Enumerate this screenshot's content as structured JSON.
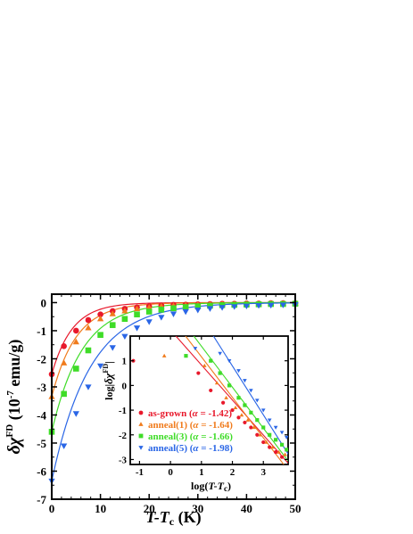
{
  "chart_data": [
    {
      "type": "scatter",
      "xlim": [
        0,
        50
      ],
      "ylim": [
        -7,
        0.3
      ],
      "xticks": [
        0,
        10,
        20,
        30,
        40,
        50
      ],
      "yticks": [
        0,
        -1,
        -2,
        -3,
        -4,
        -5,
        -6,
        -7
      ],
      "xlabel_main": "T-T",
      "xlabel_sub": "c",
      "xlabel_unit": " (K)",
      "ylabel_main": "δχ",
      "ylabel_sup": "FD",
      "ylabel_unit_pre": " (10",
      "ylabel_unit_exp": "-7",
      "ylabel_unit_post": " emu/g)",
      "legend": "inset",
      "series": [
        {
          "name": "as-grown",
          "color": "#e8182b",
          "marker": "circle",
          "x": [
            0,
            2.5,
            5,
            7.5,
            10,
            12.5,
            15,
            17.5,
            20,
            22.5,
            25,
            27.5,
            30,
            32.5,
            35,
            37.5,
            40,
            42.5,
            45,
            47.5,
            50
          ],
          "y": [
            -2.55,
            -1.55,
            -1.0,
            -0.62,
            -0.42,
            -0.3,
            -0.22,
            -0.17,
            -0.13,
            -0.1,
            -0.08,
            -0.07,
            -0.06,
            -0.05,
            -0.04,
            -0.04,
            -0.03,
            -0.03,
            -0.02,
            -0.02,
            -0.02
          ]
        },
        {
          "name": "anneal(1)",
          "color": "#f07b1c",
          "marker": "triangle-up",
          "x": [
            0,
            2.5,
            5,
            7.5,
            10,
            12.5,
            15,
            17.5,
            20,
            22.5,
            25,
            27.5,
            30,
            32.5,
            35,
            37.5,
            40,
            42.5,
            45,
            47.5,
            50
          ],
          "y": [
            -3.35,
            -2.15,
            -1.4,
            -0.9,
            -0.58,
            -0.4,
            -0.3,
            -0.22,
            -0.17,
            -0.13,
            -0.11,
            -0.09,
            -0.07,
            -0.06,
            -0.05,
            -0.05,
            -0.04,
            -0.04,
            -0.03,
            -0.03,
            -0.03
          ]
        },
        {
          "name": "anneal(3)",
          "color": "#3fdc28",
          "marker": "square",
          "x": [
            0,
            2.5,
            5,
            7.5,
            10,
            12.5,
            15,
            17.5,
            20,
            22.5,
            25,
            27.5,
            30,
            32.5,
            35,
            37.5,
            40,
            42.5,
            45,
            47.5,
            50
          ],
          "y": [
            -4.6,
            -3.25,
            -2.35,
            -1.7,
            -1.15,
            -0.8,
            -0.58,
            -0.42,
            -0.32,
            -0.25,
            -0.2,
            -0.16,
            -0.13,
            -0.11,
            -0.09,
            -0.08,
            -0.07,
            -0.06,
            -0.05,
            -0.05,
            -0.04
          ]
        },
        {
          "name": "anneal(5)",
          "color": "#2a66e6",
          "marker": "triangle-down",
          "x": [
            0,
            2.5,
            5,
            7.5,
            10,
            12.5,
            15,
            17.5,
            20,
            22.5,
            25,
            27.5,
            30,
            32.5,
            35,
            37.5,
            40,
            42.5,
            45,
            47.5,
            50
          ],
          "y": [
            -6.35,
            -5.1,
            -3.95,
            -3.0,
            -2.25,
            -1.6,
            -1.2,
            -0.9,
            -0.68,
            -0.52,
            -0.4,
            -0.32,
            -0.26,
            -0.21,
            -0.17,
            -0.14,
            -0.12,
            -0.1,
            -0.09,
            -0.08,
            -0.07
          ]
        }
      ],
      "fits": [
        {
          "series": "as-grown",
          "amplitude": -2.55,
          "decay": 4.2
        },
        {
          "series": "anneal(1)",
          "amplitude": -3.35,
          "decay": 5.0
        },
        {
          "series": "anneal(3)",
          "amplitude": -4.6,
          "decay": 6.2
        },
        {
          "series": "anneal(5)",
          "amplitude": -6.35,
          "decay": 7.8
        }
      ]
    },
    {
      "type": "scatter",
      "inset": true,
      "xlim": [
        -1.3,
        3.8
      ],
      "ylim": [
        -3.2,
        2
      ],
      "xticks": [
        -1,
        0,
        1,
        2,
        3
      ],
      "yticks": [
        1,
        0,
        -1,
        -2,
        -3
      ],
      "xlabel_pre": "log(",
      "xlabel_main": "T-T",
      "xlabel_sub": "c",
      "xlabel_post": ")",
      "ylabel_pre": "log|",
      "ylabel_main": "δχ",
      "ylabel_sup": "FD",
      "ylabel_post": "|",
      "series": [
        {
          "name": "as-grown",
          "alpha_label": "α",
          "alpha": "-1.42",
          "color": "#e8182b",
          "marker": "circle",
          "x": [
            -1.2,
            0.9,
            1.3,
            1.7,
            2.0,
            2.2,
            2.4,
            2.6,
            2.8,
            3.0,
            3.2,
            3.4,
            3.6
          ],
          "y": [
            1.0,
            0.5,
            -0.2,
            -0.7,
            -1.0,
            -1.3,
            -1.5,
            -1.7,
            -2.0,
            -2.3,
            -2.5,
            -2.7,
            -2.9
          ],
          "fit": {
            "intercept": 2.25,
            "slope": -1.42
          }
        },
        {
          "name": "anneal(1)",
          "alpha_label": "α",
          "alpha": "-1.64",
          "color": "#f07b1c",
          "marker": "triangle-up",
          "x": [
            -0.2,
            1.1,
            1.5,
            1.8,
            2.1,
            2.3,
            2.5,
            2.7,
            2.9,
            3.1,
            3.3,
            3.5,
            3.7
          ],
          "y": [
            1.2,
            0.8,
            0.1,
            -0.5,
            -0.9,
            -1.2,
            -1.4,
            -1.7,
            -2.0,
            -2.3,
            -2.5,
            -2.7,
            -2.8
          ],
          "fit": {
            "intercept": 2.8,
            "slope": -1.64
          }
        },
        {
          "name": "anneal(3)",
          "alpha_label": "α",
          "alpha": "-1.66",
          "color": "#3fdc28",
          "marker": "square",
          "x": [
            0.5,
            1.3,
            1.6,
            1.9,
            2.2,
            2.4,
            2.6,
            2.8,
            3.0,
            3.2,
            3.4,
            3.6,
            3.75
          ],
          "y": [
            1.2,
            1.0,
            0.5,
            0.0,
            -0.5,
            -0.8,
            -1.1,
            -1.4,
            -1.7,
            -2.0,
            -2.2,
            -2.4,
            -2.6
          ],
          "fit": {
            "intercept": 3.25,
            "slope": -1.66
          }
        },
        {
          "name": "anneal(5)",
          "alpha_label": "α",
          "alpha": "-1.98",
          "color": "#2a66e6",
          "marker": "triangle-down",
          "x": [
            0.8,
            1.6,
            1.9,
            2.2,
            2.4,
            2.6,
            2.8,
            3.0,
            3.2,
            3.4,
            3.6,
            3.75
          ],
          "y": [
            1.5,
            1.3,
            1.0,
            0.6,
            0.2,
            -0.2,
            -0.6,
            -1.0,
            -1.4,
            -1.7,
            -1.9,
            -2.1
          ],
          "fit": {
            "intercept": 4.75,
            "slope": -1.98
          }
        }
      ]
    }
  ]
}
